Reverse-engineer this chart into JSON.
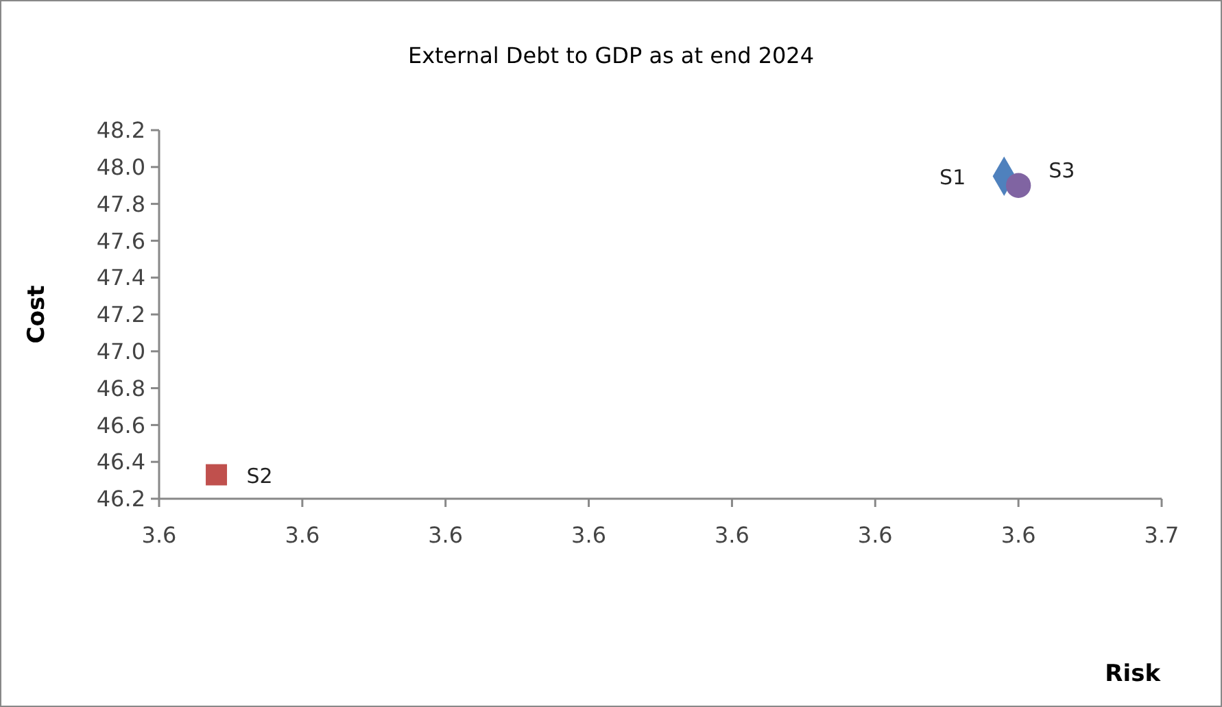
{
  "chart_data": {
    "type": "scatter",
    "title": "External Debt to GDP as at end 2024",
    "xlabel": "Risk",
    "ylabel": "Cost",
    "series": [
      {
        "name": "S1",
        "color": "#4f81bd",
        "marker": "diamond",
        "x": [
          3.639
        ],
        "values": [
          47.95
        ]
      },
      {
        "name": "S2",
        "color": "#c0504d",
        "marker": "square",
        "x": [
          3.584
        ],
        "values": [
          46.33
        ]
      },
      {
        "name": "S3",
        "color": "#8064a2",
        "marker": "circle",
        "x": [
          3.64
        ],
        "values": [
          47.9
        ]
      }
    ],
    "xlim": [
      3.58,
      3.65
    ],
    "xticks": [
      {
        "value": 3.58,
        "label": "3.6"
      },
      {
        "value": 3.59,
        "label": "3.6"
      },
      {
        "value": 3.6,
        "label": "3.6"
      },
      {
        "value": 3.61,
        "label": "3.6"
      },
      {
        "value": 3.62,
        "label": "3.6"
      },
      {
        "value": 3.63,
        "label": "3.6"
      },
      {
        "value": 3.64,
        "label": "3.6"
      },
      {
        "value": 3.65,
        "label": "3.7"
      }
    ],
    "ylim": [
      46.2,
      48.2
    ],
    "yticks": [
      {
        "value": 46.2,
        "label": "46.2"
      },
      {
        "value": 46.4,
        "label": "46.4"
      },
      {
        "value": 46.6,
        "label": "46.6"
      },
      {
        "value": 46.8,
        "label": "46.8"
      },
      {
        "value": 47.0,
        "label": "47.0"
      },
      {
        "value": 47.2,
        "label": "47.2"
      },
      {
        "value": 47.4,
        "label": "47.4"
      },
      {
        "value": 47.6,
        "label": "47.6"
      },
      {
        "value": 47.8,
        "label": "47.8"
      },
      {
        "value": 48.0,
        "label": "48.0"
      },
      {
        "value": 48.2,
        "label": "48.2"
      }
    ],
    "grid": false
  }
}
